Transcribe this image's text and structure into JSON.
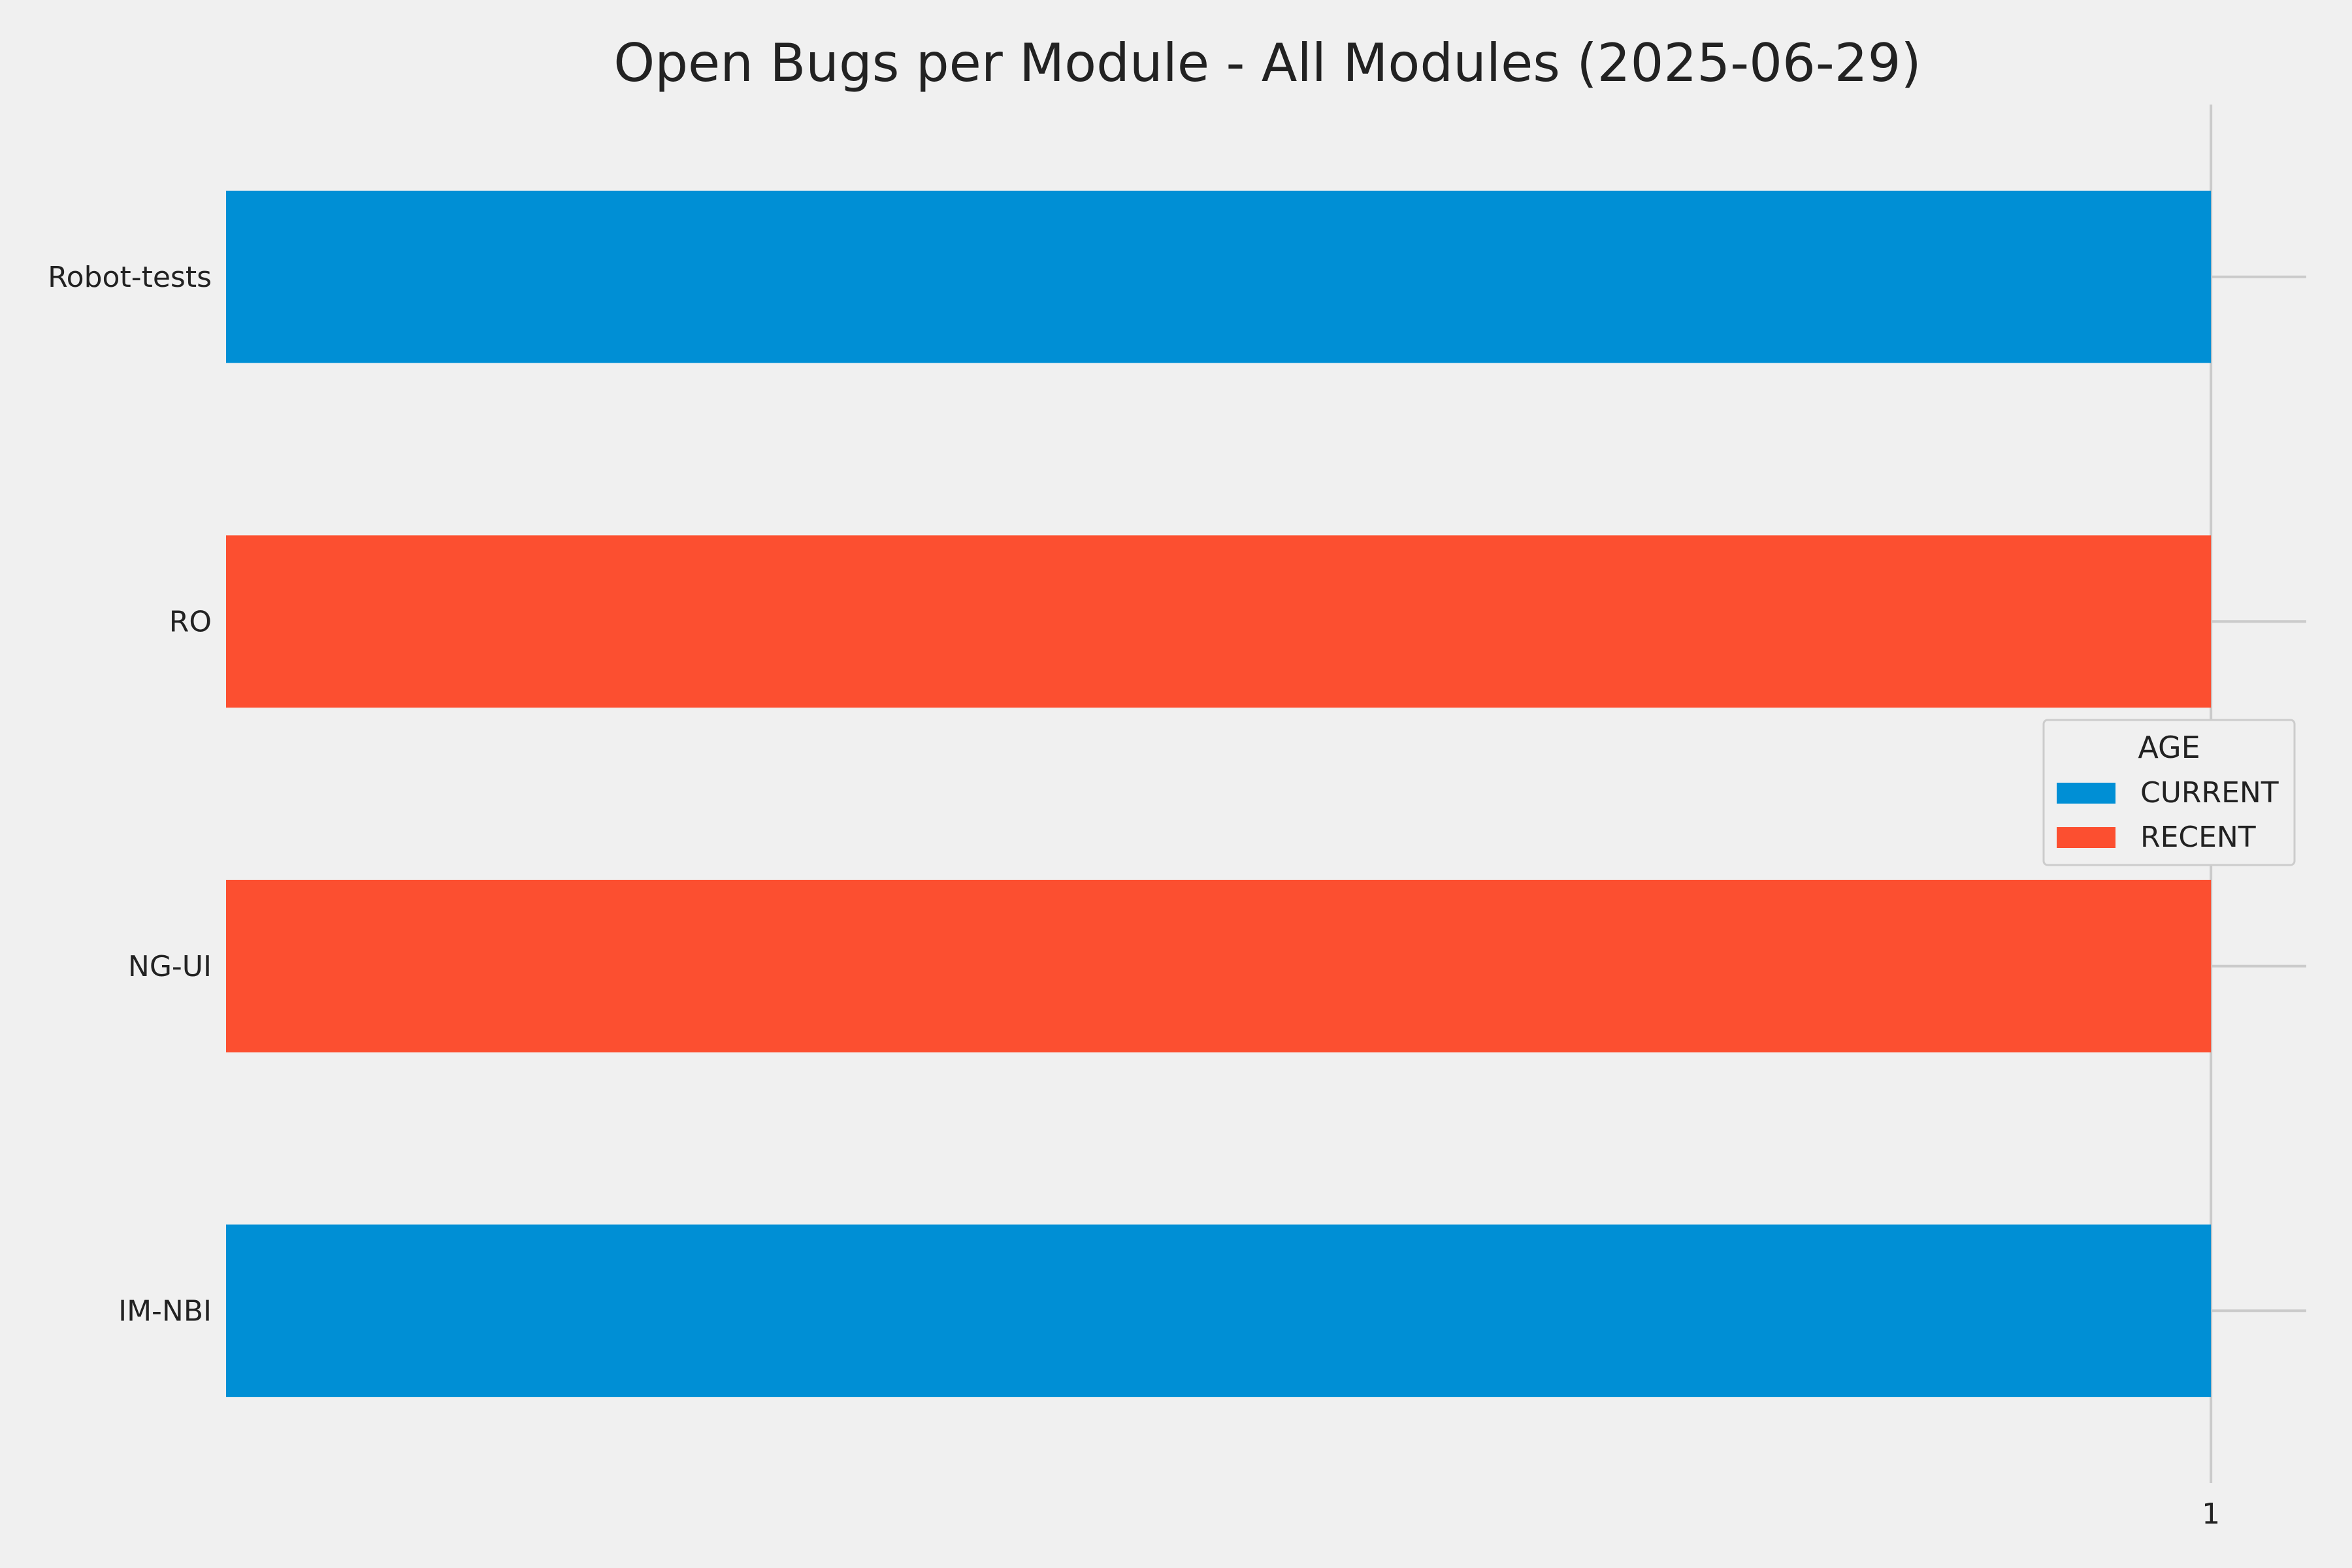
{
  "chart_data": {
    "type": "bar",
    "orientation": "horizontal",
    "title": "Open Bugs per Module - All Modules (2025-06-29)",
    "xlabel": "",
    "ylabel": "",
    "categories": [
      "Robot-tests",
      "RO",
      "NG-UI",
      "IM-NBI"
    ],
    "values": [
      1,
      1,
      1,
      1
    ],
    "bar_series": [
      "CURRENT",
      "RECENT",
      "RECENT",
      "CURRENT"
    ],
    "xlim": [
      0,
      1.048
    ],
    "xticks": [
      1
    ],
    "grid": true,
    "legend": {
      "title": "AGE",
      "placement": "center-right",
      "entries": [
        {
          "name": "CURRENT",
          "color": "#008fd5"
        },
        {
          "name": "RECENT",
          "color": "#fc4f30"
        }
      ]
    }
  },
  "colors": {
    "background": "#f0f0f0",
    "grid": "#cbcbcb",
    "text": "#222222",
    "current": "#008fd5",
    "recent": "#fc4f30"
  }
}
